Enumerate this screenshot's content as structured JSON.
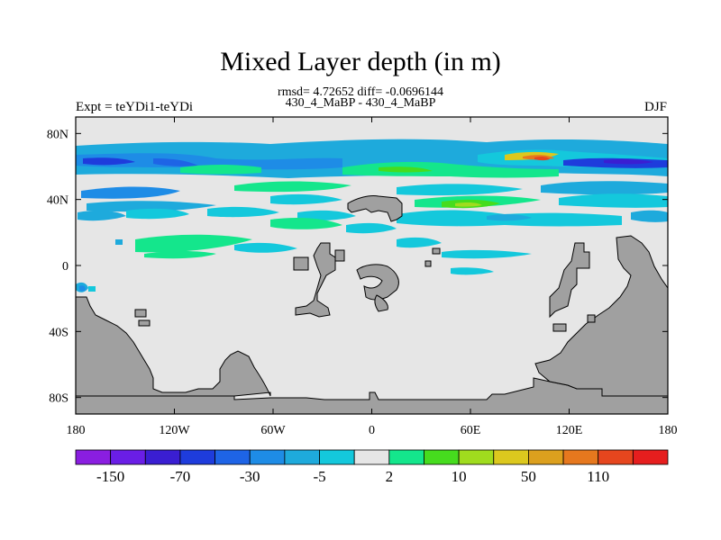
{
  "chart_data": {
    "type": "heatmap",
    "title": "Mixed Layer depth (in m)",
    "subtitle_stats": "rmsd= 4.72652 diff= -0.0696144",
    "subtitle_experiment": "430_4_MaBP - 430_4_MaBP",
    "left_label": "Expt = teYDi1-teYDi",
    "right_label": "DJF",
    "x_axis": {
      "range": [
        -180,
        180
      ],
      "ticks": [
        -180,
        -120,
        -60,
        0,
        60,
        120,
        180
      ],
      "tick_labels": [
        "180",
        "120W",
        "60W",
        "0",
        "60E",
        "120E",
        "180"
      ]
    },
    "y_axis": {
      "range": [
        -90,
        90
      ],
      "ticks": [
        80,
        40,
        0,
        -40,
        -80
      ],
      "tick_labels": [
        "80N",
        "40N",
        "0",
        "40S",
        "80S"
      ]
    },
    "colorbar": {
      "colors": [
        "#8a1ee0",
        "#6a1ee6",
        "#3a1ed2",
        "#1e3cdc",
        "#1e64e6",
        "#1e8ce6",
        "#1eaadc",
        "#14c8dc",
        "#e6e6e6",
        "#14e68c",
        "#46dc1e",
        "#a0dc1e",
        "#dcc81e",
        "#dca01e",
        "#e6781e",
        "#e6461e",
        "#e61e1e"
      ],
      "labels": [
        "-150",
        "-70",
        "-30",
        "-5",
        "2",
        "10",
        "50",
        "110"
      ]
    },
    "land_color": "#a0a0a0",
    "ocean_neutral_color": "#e6e6e6"
  }
}
